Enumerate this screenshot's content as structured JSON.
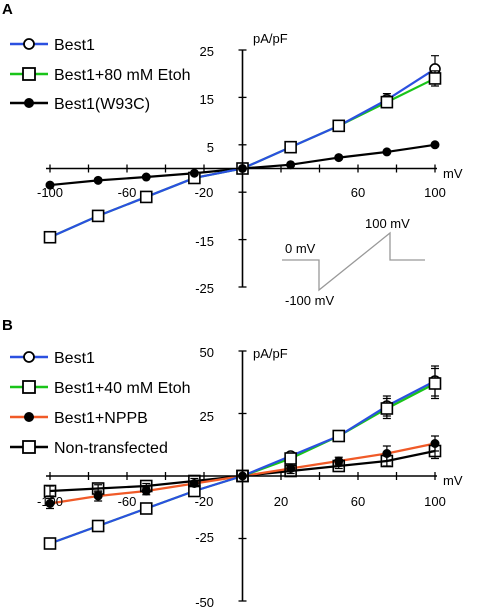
{
  "colors": {
    "blue": "#2b50e0",
    "green": "#19c419",
    "black": "#000000",
    "red": "#f05a28",
    "protocol_line": "#999999"
  },
  "chart_data": [
    {
      "type": "line",
      "panel_label": "A",
      "ylabel": "pA/pF",
      "xlabel": "mV",
      "xlim": [
        -100,
        100
      ],
      "ylim": [
        -25,
        25
      ],
      "x_ticks": [
        "-100",
        "-60",
        "-20",
        "60",
        "100"
      ],
      "y_ticks": [
        "25",
        "15",
        "5",
        "-15",
        "-25"
      ],
      "legend_position": "top-left",
      "series": [
        {
          "name": "Best1",
          "color": "blue",
          "marker": "open-circle",
          "x": [
            -100,
            -75,
            -50,
            -25,
            0,
            25,
            50,
            75,
            100
          ],
          "y": [
            -14.5,
            -10,
            -6,
            -2,
            0,
            4.5,
            9,
            14.5,
            21
          ],
          "err": [
            0.7,
            0.6,
            0.5,
            0.4,
            0,
            0.5,
            0.7,
            1.3,
            2.8
          ]
        },
        {
          "name": "Best1+80 mM Etoh",
          "color": "green",
          "marker": "open-square",
          "x": [
            -100,
            -75,
            -50,
            -25,
            0,
            25,
            50,
            75,
            100
          ],
          "y": [
            -14.5,
            -10,
            -6,
            -2,
            0,
            4.5,
            9,
            14,
            19
          ],
          "err": [
            0.7,
            0.6,
            0.5,
            0.4,
            0,
            0.5,
            0.7,
            1.2,
            1.6
          ]
        },
        {
          "name": "Best1(W93C)",
          "color": "black",
          "marker": "filled-circle",
          "x": [
            -100,
            -75,
            -50,
            -25,
            0,
            25,
            50,
            75,
            100
          ],
          "y": [
            -3.5,
            -2.5,
            -1.8,
            -1,
            0,
            0.8,
            2.3,
            3.5,
            5
          ],
          "err": [
            0,
            0,
            0,
            0,
            0,
            0,
            0,
            0,
            0
          ]
        }
      ],
      "inset": {
        "labels": [
          "0 mV",
          "100 mV",
          "-100 mV"
        ]
      }
    },
    {
      "type": "line",
      "panel_label": "B",
      "ylabel": "pA/pF",
      "xlabel": "mV",
      "xlim": [
        -100,
        100
      ],
      "ylim": [
        -50,
        50
      ],
      "x_ticks": [
        "-100",
        "-60",
        "-20",
        "20",
        "60",
        "100"
      ],
      "y_ticks": [
        "50",
        "25",
        "-25",
        "-50"
      ],
      "legend_position": "top-left",
      "series": [
        {
          "name": "Best1",
          "color": "blue",
          "marker": "open-circle",
          "x": [
            -100,
            -75,
            -50,
            -25,
            0,
            25,
            50,
            75,
            100
          ],
          "y": [
            -27,
            -20,
            -13,
            -6,
            0,
            8,
            16,
            28,
            38
          ],
          "err": [
            2,
            1.5,
            1.2,
            1,
            0,
            1,
            2,
            4,
            6
          ]
        },
        {
          "name": "Best1+40 mM Etoh",
          "color": "green",
          "marker": "open-square",
          "x": [
            -100,
            -75,
            -50,
            -25,
            0,
            25,
            50,
            75,
            100
          ],
          "y": [
            -27,
            -20,
            -13,
            -6,
            0,
            7,
            16,
            27,
            37
          ],
          "err": [
            2,
            1.5,
            1.2,
            1,
            0,
            1,
            2,
            4,
            6
          ]
        },
        {
          "name": "Best1+NPPB",
          "color": "red",
          "marker": "filled-circle",
          "x": [
            -100,
            -75,
            -50,
            -25,
            0,
            25,
            50,
            75,
            100
          ],
          "y": [
            -11,
            -8,
            -6,
            -3,
            0,
            3,
            6,
            9,
            13
          ],
          "err": [
            2,
            2,
            1.5,
            1,
            0,
            1,
            1.5,
            3,
            3
          ]
        },
        {
          "name": "Non-transfected",
          "color": "black",
          "marker": "open-square",
          "x": [
            -100,
            -75,
            -50,
            -25,
            0,
            25,
            50,
            75,
            100
          ],
          "y": [
            -6,
            -5,
            -4,
            -2,
            0,
            2,
            4,
            6,
            10
          ],
          "err": [
            2,
            1.5,
            1,
            1,
            0,
            1,
            1,
            2,
            3
          ]
        }
      ]
    }
  ]
}
